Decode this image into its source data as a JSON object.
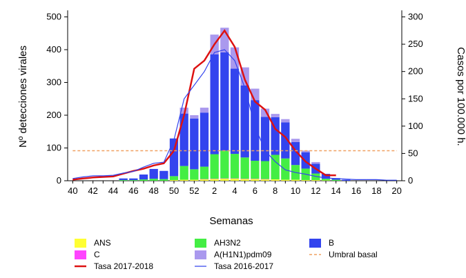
{
  "chart_data": {
    "type": "bar",
    "xlabel": "Semanas",
    "ylabel": "Nº detecciones virales",
    "ylabel_right": "Casos por 100.000 h.",
    "ylim": [
      0,
      520
    ],
    "ylim_right": [
      0,
      312
    ],
    "yticks": [
      0,
      100,
      200,
      300,
      400,
      500
    ],
    "yticks_right": [
      0,
      50,
      100,
      150,
      200,
      250,
      300
    ],
    "xticks": [
      "40",
      "42",
      "44",
      "46",
      "48",
      "50",
      "52",
      "2",
      "4",
      "6",
      "8",
      "10",
      "12",
      "14",
      "16",
      "18",
      "20"
    ],
    "weeks": [
      "40",
      "41",
      "42",
      "43",
      "44",
      "45",
      "46",
      "47",
      "48",
      "49",
      "50",
      "51",
      "52",
      "1",
      "2",
      "3",
      "4",
      "5",
      "6",
      "7",
      "8",
      "9",
      "10",
      "11",
      "12",
      "13",
      "14",
      "15",
      "16",
      "17",
      "18",
      "19",
      "20"
    ],
    "stacked_series": [
      {
        "name": "ANS",
        "color": "#ffff33",
        "values": [
          0,
          0,
          0,
          0,
          0,
          0,
          0,
          0,
          0,
          0,
          2,
          3,
          3,
          4,
          5,
          6,
          6,
          5,
          5,
          4,
          4,
          3,
          3,
          2,
          2,
          1,
          0,
          0,
          0,
          0,
          0,
          0,
          0
        ]
      },
      {
        "name": "C",
        "color": "#ff44ff",
        "values": [
          0,
          0,
          0,
          0,
          0,
          0,
          0,
          0,
          0,
          0,
          0,
          0,
          0,
          1,
          1,
          1,
          1,
          1,
          1,
          1,
          0,
          0,
          0,
          0,
          0,
          0,
          0,
          0,
          0,
          0,
          0,
          0,
          0
        ]
      },
      {
        "name": "AH3N2",
        "color": "#44ee44",
        "values": [
          0,
          0,
          0,
          0,
          0,
          2,
          2,
          4,
          6,
          5,
          12,
          42,
          32,
          38,
          75,
          85,
          75,
          65,
          55,
          55,
          75,
          65,
          45,
          35,
          20,
          5,
          3,
          0,
          0,
          0,
          0,
          0,
          0
        ]
      },
      {
        "name": "B",
        "color": "#3344ee",
        "values": [
          0,
          0,
          0,
          0,
          0,
          5,
          5,
          15,
          30,
          25,
          115,
          160,
          155,
          165,
          305,
          300,
          260,
          220,
          185,
          135,
          115,
          110,
          70,
          50,
          30,
          15,
          5,
          3,
          0,
          0,
          0,
          0,
          0
        ]
      },
      {
        "name": "A(H1N1)pdm09",
        "color": "#aa99ee",
        "values": [
          0,
          0,
          0,
          0,
          0,
          0,
          0,
          0,
          0,
          0,
          0,
          18,
          10,
          15,
          60,
          75,
          65,
          55,
          35,
          25,
          10,
          10,
          10,
          5,
          5,
          0,
          0,
          0,
          0,
          0,
          0,
          0,
          0
        ]
      }
    ],
    "line_series": [
      {
        "name": "Tasa 2017-2018",
        "color": "#dd1111",
        "values": [
          2,
          4,
          6,
          7,
          8,
          13,
          18,
          22,
          28,
          32,
          55,
          120,
          205,
          220,
          250,
          275,
          245,
          185,
          145,
          130,
          95,
          80,
          55,
          35,
          22,
          10,
          10,
          null,
          null,
          null,
          null,
          null,
          null
        ]
      },
      {
        "name": "Tasa 2016-2017",
        "color": "#3344ee",
        "values": [
          4,
          7,
          9,
          9,
          10,
          14,
          17,
          25,
          32,
          34,
          75,
          150,
          175,
          200,
          235,
          240,
          220,
          170,
          100,
          55,
          35,
          20,
          15,
          12,
          8,
          5,
          4,
          3,
          2,
          2,
          2,
          1,
          1
        ]
      },
      {
        "name": "Umbral basal",
        "color": "#f0a060",
        "dashed": true,
        "values": [
          55,
          55,
          55,
          55,
          55,
          55,
          55,
          55,
          55,
          55,
          55,
          55,
          55,
          55,
          55,
          55,
          55,
          55,
          55,
          55,
          55,
          55,
          55,
          55,
          55,
          55,
          55,
          55,
          55,
          55,
          55,
          55,
          55
        ]
      }
    ],
    "legend": [
      {
        "label": "ANS",
        "kind": "box",
        "color": "#ffff33"
      },
      {
        "label": "AH3N2",
        "kind": "box",
        "color": "#44ee44"
      },
      {
        "label": "B",
        "kind": "box",
        "color": "#3344ee"
      },
      {
        "label": "C",
        "kind": "box",
        "color": "#ff44ff"
      },
      {
        "label": "A(H1N1)pdm09",
        "kind": "box",
        "color": "#aa99ee"
      },
      {
        "label": "Umbral basal",
        "kind": "dash",
        "color": "#f0a060"
      },
      {
        "label": "Tasa 2017-2018",
        "kind": "line-thick",
        "color": "#dd1111"
      },
      {
        "label": "Tasa 2016-2017",
        "kind": "line-thin",
        "color": "#3344ee"
      }
    ]
  }
}
